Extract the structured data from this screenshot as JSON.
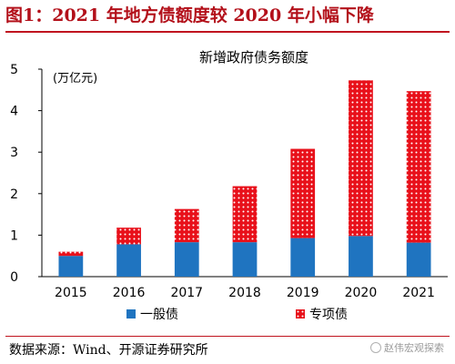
{
  "header": {
    "title": "图1：2021 年地方债额度较 2020 年小幅下降"
  },
  "footer": {
    "source": "数据来源：Wind、开源证券研究所",
    "watermark": "赵伟宏观探索"
  },
  "colors": {
    "title": "#b3101a",
    "general": "#1f74c0",
    "special_bg": "#ffffff",
    "special_dot": "#e8101a"
  },
  "chart_data": {
    "type": "bar",
    "stacked": true,
    "title": "新增政府债务额度",
    "unit_label": "(万亿元)",
    "categories": [
      "2015",
      "2016",
      "2017",
      "2018",
      "2019",
      "2020",
      "2021"
    ],
    "series": [
      {
        "name": "一般债",
        "values": [
          0.5,
          0.78,
          0.83,
          0.83,
          0.93,
          0.98,
          0.82
        ],
        "color": "#1f74c0",
        "pattern": "solid"
      },
      {
        "name": "专项债",
        "values": [
          0.1,
          0.4,
          0.8,
          1.35,
          2.15,
          3.75,
          3.65
        ],
        "color": "#e8101a",
        "pattern": "dots"
      }
    ],
    "ylim": [
      0,
      5
    ],
    "yticks": [
      "0",
      "1",
      "2",
      "3",
      "4",
      "5"
    ],
    "grid": false,
    "legend_position": "bottom-center"
  }
}
